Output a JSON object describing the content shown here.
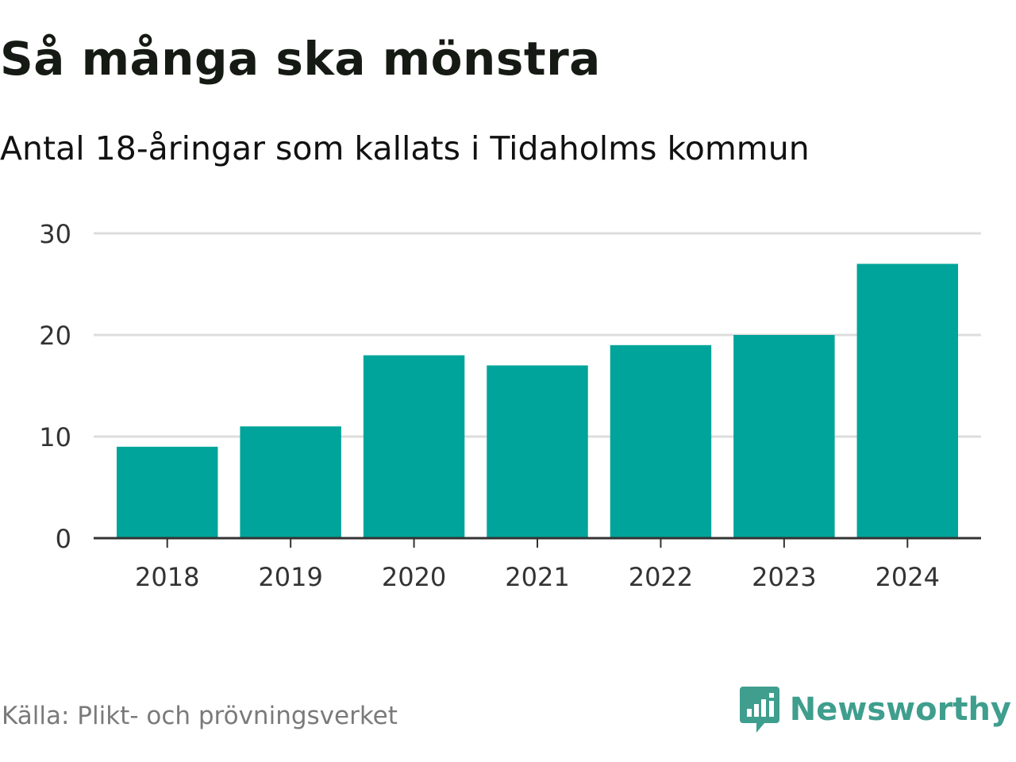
{
  "header": {
    "title": "Så många ska mönstra",
    "subtitle": "Antal 18-åringar som kallats i Tidaholms kommun"
  },
  "footer": {
    "source": "Källa: Plikt- och prövningsverket",
    "brand": "Newsworthy",
    "brand_icon": "chart-bubble-icon"
  },
  "colors": {
    "bar": "#00a49a",
    "grid": "#dddddd",
    "axis": "#333333",
    "tick_text": "#333333",
    "brand": "#3f9e8e",
    "source": "#7a7a7a"
  },
  "chart_data": {
    "type": "bar",
    "title": "Så många ska mönstra",
    "subtitle": "Antal 18-åringar som kallats i Tidaholms kommun",
    "xlabel": "",
    "ylabel": "",
    "categories": [
      "2018",
      "2019",
      "2020",
      "2021",
      "2022",
      "2023",
      "2024"
    ],
    "values": [
      9,
      11,
      18,
      17,
      19,
      20,
      27
    ],
    "ylim": [
      0,
      30
    ],
    "yticks": [
      0,
      10,
      20,
      30
    ],
    "grid": true,
    "legend": "none"
  }
}
